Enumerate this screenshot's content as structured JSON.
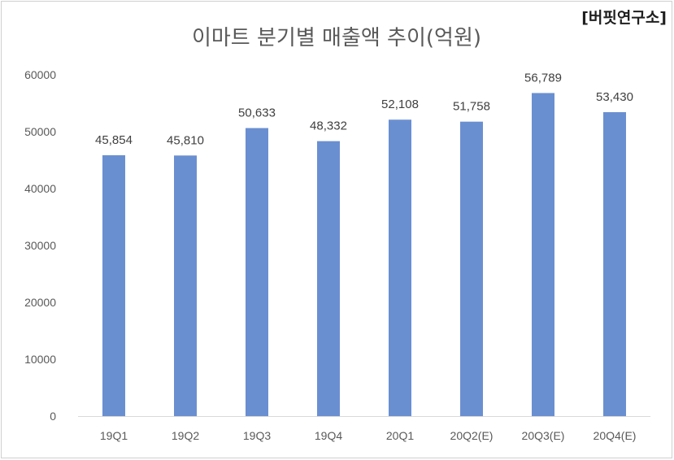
{
  "watermark": "[버핏연구소]",
  "chart_data": {
    "type": "bar",
    "title": "이마트 분기별 매출액 추이(억원)",
    "categories": [
      "19Q1",
      "19Q2",
      "19Q3",
      "19Q4",
      "20Q1",
      "20Q2(E)",
      "20Q3(E)",
      "20Q4(E)"
    ],
    "values": [
      45854,
      45810,
      50633,
      48332,
      52108,
      51758,
      56789,
      53430
    ],
    "data_labels": [
      "45,854",
      "45,810",
      "50,633",
      "48,332",
      "52,108",
      "51,758",
      "56,789",
      "53,430"
    ],
    "ylim": [
      0,
      60000
    ],
    "yticks": [
      "0",
      "10000",
      "20000",
      "30000",
      "40000",
      "50000",
      "60000"
    ],
    "bar_color": "#6A8FD1",
    "grid": false,
    "legend": "none"
  }
}
